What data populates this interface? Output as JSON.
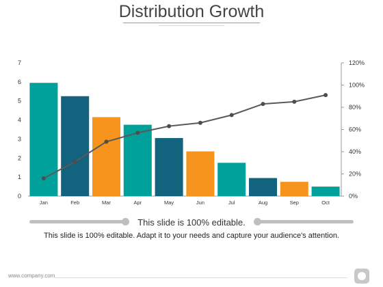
{
  "title": "Distribution Growth",
  "caption": "This slide is 100% editable.",
  "body_text": "This slide is 100% editable. Adapt it to your needs and capture your audience's attention.",
  "footer": "www.company.com",
  "colors": {
    "teal": "#00A19A",
    "dark_teal": "#12637D",
    "orange": "#F7941D",
    "line": "#595959"
  },
  "chart_data": {
    "type": "bar",
    "categories": [
      "Jan",
      "Feb",
      "Mar",
      "Apr",
      "May",
      "Jun",
      "Jul",
      "Aug",
      "Sep",
      "Oct"
    ],
    "values": [
      5.95,
      5.25,
      4.15,
      3.75,
      3.05,
      2.35,
      1.75,
      0.95,
      0.75,
      0.5
    ],
    "bar_colors": [
      "teal",
      "dark_teal",
      "orange",
      "teal",
      "dark_teal",
      "orange",
      "teal",
      "dark_teal",
      "orange",
      "teal"
    ],
    "line": {
      "values": [
        16,
        31,
        49,
        57,
        63,
        66,
        73,
        83,
        85,
        91
      ]
    },
    "ylim": [
      0,
      7
    ],
    "yticks": [
      "0",
      "1",
      "2",
      "3",
      "4",
      "5",
      "6",
      "7"
    ],
    "y2lim": [
      0,
      120
    ],
    "y2ticks": [
      "0%",
      "20%",
      "40%",
      "60%",
      "80%",
      "100%",
      "120%"
    ],
    "grid": false
  }
}
